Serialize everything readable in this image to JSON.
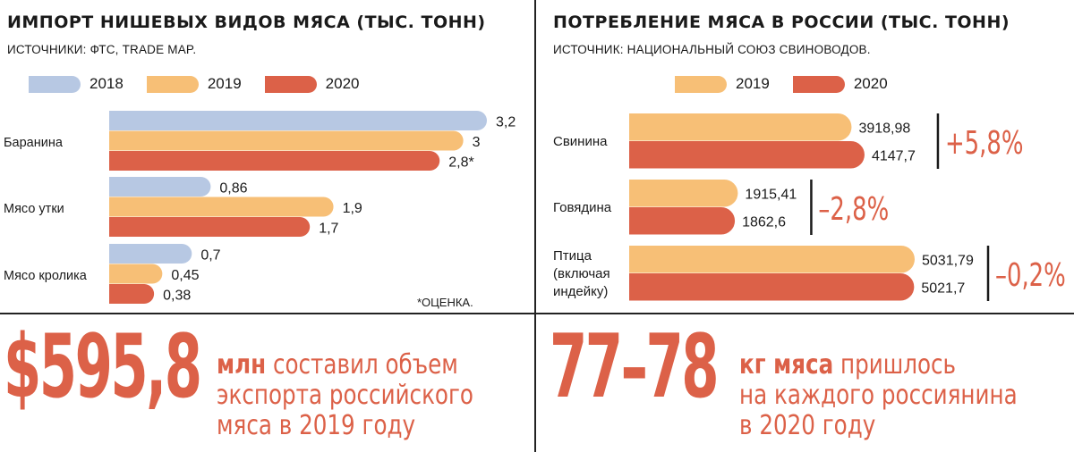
{
  "colors": {
    "y2018": "#b7c8e3",
    "y2019": "#f7bf76",
    "y2020": "#dc6148",
    "accent": "#dc6148"
  },
  "left": {
    "title": "ИМПОРТ НИШЕВЫХ ВИДОВ МЯСА (ТЫС. ТОНН)",
    "source": "ИСТОЧНИКИ: ФТС, TRADE MAP.",
    "legend": [
      "2018",
      "2019",
      "2020"
    ],
    "note": "*ОЦЕНКА."
  },
  "right": {
    "title": "ПОТРЕБЛЕНИЕ МЯСА В РОССИИ (ТЫС. ТОНН)",
    "source": "ИСТОЧНИК: НАЦИОНАЛЬНЫЙ СОЮЗ СВИНОВОДОВ.",
    "legend": [
      "2019",
      "2020"
    ]
  },
  "chart_data": [
    {
      "type": "bar",
      "orientation": "horizontal",
      "title": "ИМПОРТ НИШЕВЫХ ВИДОВ МЯСА (ТЫС. ТОНН)",
      "categories": [
        "Баранина",
        "Мясо утки",
        "Мясо кролика"
      ],
      "series": [
        {
          "name": "2018",
          "values": [
            3.2,
            0.86,
            0.7
          ],
          "labels": [
            "3,2",
            "0,86",
            "0,7"
          ]
        },
        {
          "name": "2019",
          "values": [
            3,
            1.9,
            0.45
          ],
          "labels": [
            "3",
            "1,9",
            "0,45"
          ]
        },
        {
          "name": "2020",
          "values": [
            2.8,
            1.7,
            0.38
          ],
          "labels": [
            "2,8*",
            "1,7",
            "0,38"
          ]
        }
      ],
      "xlim": [
        0,
        3.2
      ],
      "grid": false,
      "legend_position": "top"
    },
    {
      "type": "bar",
      "orientation": "horizontal",
      "title": "ПОТРЕБЛЕНИЕ МЯСА В РОССИИ (ТЫС. ТОНН)",
      "categories": [
        "Свинина",
        "Говядина",
        "Птица (включая индейку)"
      ],
      "category_lines": [
        [
          "Свинина"
        ],
        [
          "Говядина"
        ],
        [
          "Птица",
          "(включая",
          "индейку)"
        ]
      ],
      "series": [
        {
          "name": "2019",
          "values": [
            3918.98,
            1915.41,
            5031.79
          ],
          "labels": [
            "3918,98",
            "1915,41",
            "5031,79"
          ]
        },
        {
          "name": "2020",
          "values": [
            4147.7,
            1862.6,
            5021.7
          ],
          "labels": [
            "4147,7",
            "1862,6",
            "5021,7"
          ]
        }
      ],
      "changes": [
        "+5,8%",
        "–2,8%",
        "–0,2%"
      ],
      "grid": false,
      "legend_position": "top"
    }
  ],
  "bottom": {
    "left": {
      "big": "$595,8",
      "bold": "млн",
      "rest_line1": " составил объем",
      "line2": "экспорта российского",
      "line3": "мяса в 2019 году"
    },
    "right": {
      "big": "77–78",
      "bold": "кг мяса",
      "rest_line1": " пришлось",
      "line2": "на каждого россиянина",
      "line3": "в 2020 году"
    }
  }
}
